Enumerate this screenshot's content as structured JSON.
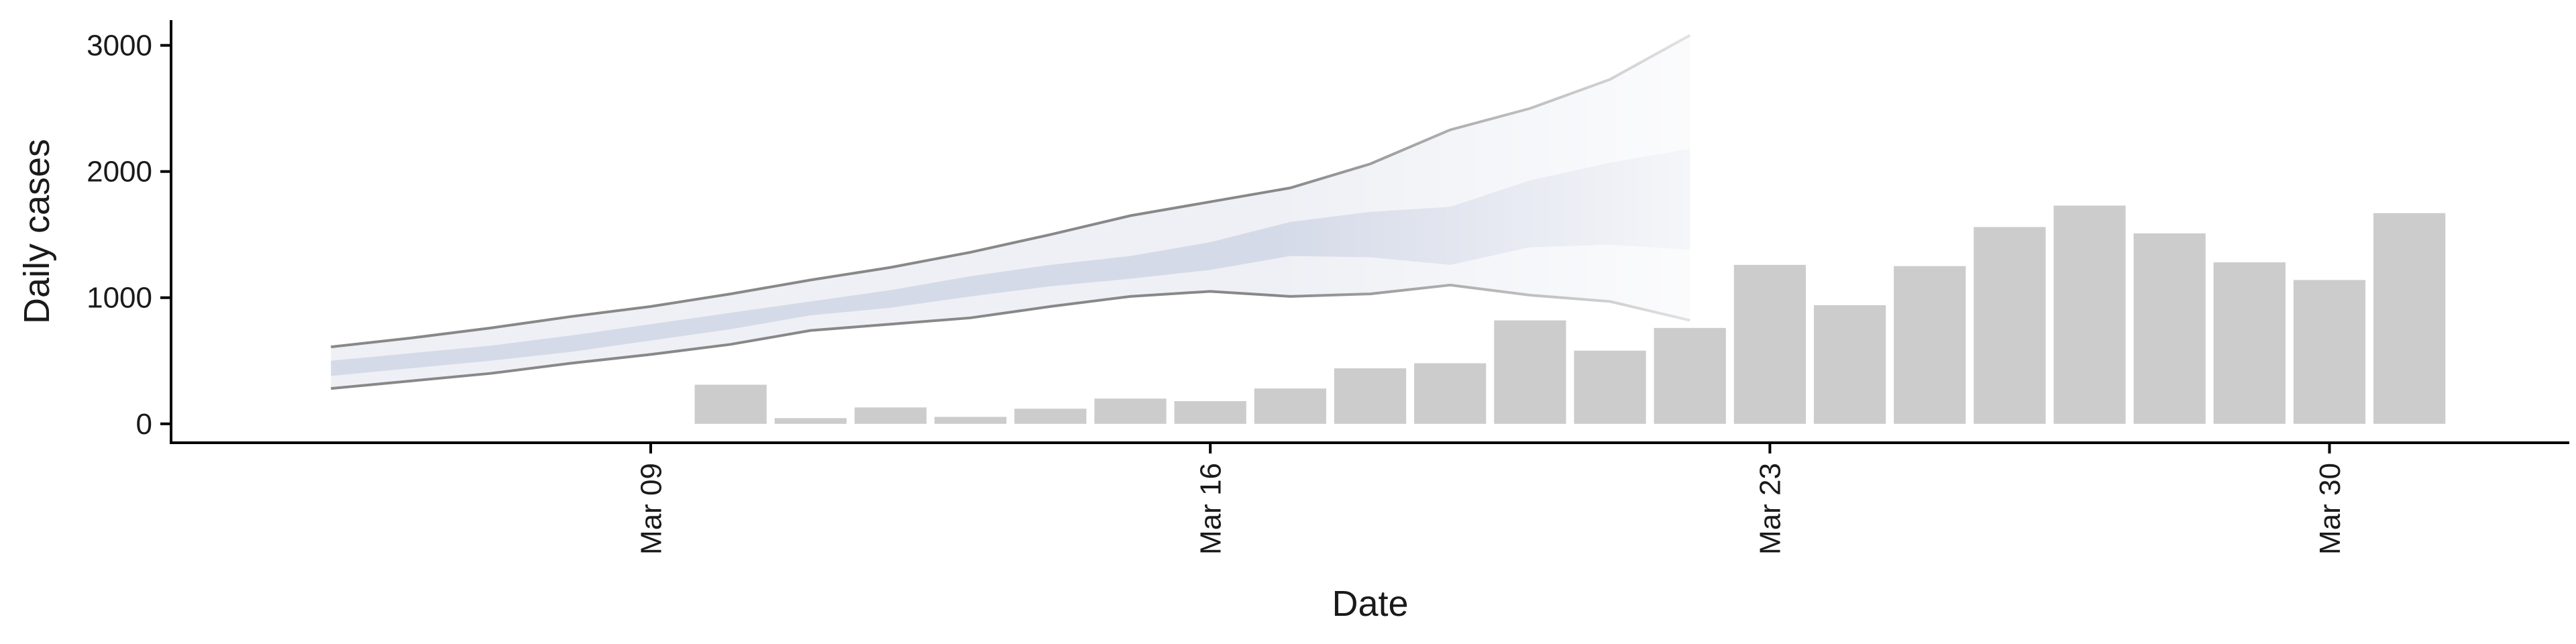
{
  "chart_data": {
    "type": "bar",
    "xlabel": "Date",
    "ylabel": "Daily cases",
    "ylim": [
      -150,
      3200
    ],
    "xlim": [
      "2020-03-03",
      "2020-04-02"
    ],
    "yticks": [
      0,
      1000,
      2000,
      3000
    ],
    "xticks": [
      {
        "date": "2020-03-09",
        "label": "Mar 09"
      },
      {
        "date": "2020-03-16",
        "label": "Mar 16"
      },
      {
        "date": "2020-03-23",
        "label": "Mar 23"
      },
      {
        "date": "2020-03-30",
        "label": "Mar 30"
      }
    ],
    "grid": false,
    "colors": {
      "bars": "#cccccc",
      "ribbon_outer": "#eef0f5",
      "ribbon_inner": "#d5dae8",
      "bound_line": "#888888",
      "axis": "#000000"
    },
    "bars": {
      "dates": [
        "2020-03-10",
        "2020-03-11",
        "2020-03-12",
        "2020-03-13",
        "2020-03-14",
        "2020-03-15",
        "2020-03-16",
        "2020-03-17",
        "2020-03-18",
        "2020-03-19",
        "2020-03-20",
        "2020-03-21",
        "2020-03-22",
        "2020-03-23",
        "2020-03-24",
        "2020-03-25",
        "2020-03-26",
        "2020-03-27",
        "2020-03-28",
        "2020-03-29",
        "2020-03-30",
        "2020-03-31"
      ],
      "values": [
        310,
        45,
        130,
        55,
        120,
        200,
        180,
        280,
        440,
        480,
        820,
        580,
        760,
        1260,
        940,
        1250,
        1560,
        1730,
        1510,
        1280,
        1140,
        1670
      ]
    },
    "forecast": {
      "dates": [
        "2020-03-05",
        "2020-03-06",
        "2020-03-07",
        "2020-03-08",
        "2020-03-09",
        "2020-03-10",
        "2020-03-11",
        "2020-03-12",
        "2020-03-13",
        "2020-03-14",
        "2020-03-15",
        "2020-03-16",
        "2020-03-17",
        "2020-03-18",
        "2020-03-19",
        "2020-03-20",
        "2020-03-21",
        "2020-03-22"
      ],
      "lower_outer": [
        280,
        340,
        400,
        480,
        550,
        630,
        740,
        790,
        840,
        930,
        1010,
        1050,
        1010,
        1030,
        1100,
        1020,
        970,
        820
      ],
      "lower_inner": [
        380,
        440,
        500,
        570,
        660,
        750,
        860,
        920,
        1010,
        1090,
        1150,
        1220,
        1330,
        1320,
        1260,
        1400,
        1420,
        1380
      ],
      "upper_inner": [
        500,
        560,
        620,
        700,
        790,
        880,
        970,
        1060,
        1170,
        1260,
        1330,
        1440,
        1600,
        1680,
        1720,
        1930,
        2070,
        2180
      ],
      "upper_outer": [
        610,
        680,
        760,
        850,
        930,
        1030,
        1140,
        1240,
        1360,
        1500,
        1650,
        1760,
        1870,
        2060,
        2330,
        2500,
        2730,
        3080
      ]
    }
  }
}
